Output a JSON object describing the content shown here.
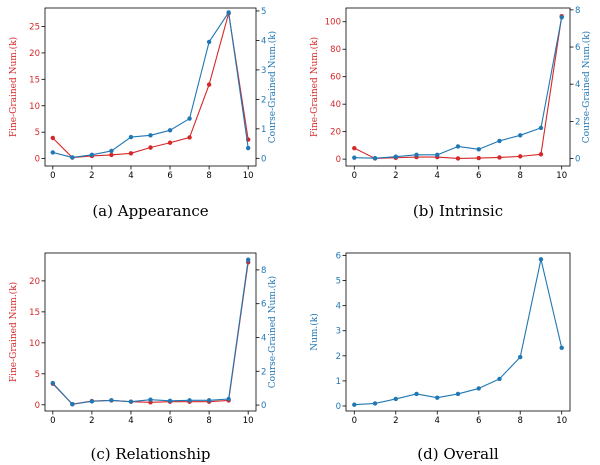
{
  "colors": {
    "fine": "#d62728",
    "coarse": "#1f77b4",
    "axis": "#000000"
  },
  "chart_data": [
    {
      "type": "line",
      "caption": "(a) Appearance",
      "x": [
        0,
        1,
        2,
        3,
        4,
        5,
        6,
        7,
        8,
        9,
        10
      ],
      "xlim": [
        -0.4,
        10.4
      ],
      "xticks": [
        0,
        2,
        4,
        6,
        8,
        10
      ],
      "ylabel": "Fine-Grained Num.(k)",
      "ylim": [
        -1.4,
        28.5
      ],
      "yticks": [
        0,
        5,
        10,
        15,
        20,
        25
      ],
      "y2label": "Course-Grained Num.(k)",
      "y2lim": [
        -0.26,
        5.1
      ],
      "y2ticks": [
        0,
        1,
        2,
        3,
        4,
        5
      ],
      "series": [
        {
          "axis": "left",
          "color": "#d62728",
          "values": [
            3.9,
            0.2,
            0.5,
            0.7,
            1.0,
            2.1,
            3.0,
            4.0,
            14.0,
            27.5,
            3.6
          ]
        },
        {
          "axis": "right",
          "color": "#1f77b4",
          "values": [
            0.2,
            0.03,
            0.12,
            0.25,
            0.72,
            0.78,
            0.95,
            1.35,
            3.95,
            4.95,
            0.35
          ]
        }
      ]
    },
    {
      "type": "line",
      "caption": "(b) Intrinsic",
      "x": [
        0,
        1,
        2,
        3,
        4,
        5,
        6,
        7,
        8,
        9,
        10
      ],
      "xlim": [
        -0.4,
        10.4
      ],
      "xticks": [
        0,
        2,
        4,
        6,
        8,
        10
      ],
      "ylabel": "Fine-Grained Num.(k)",
      "ylim": [
        -5,
        110
      ],
      "yticks": [
        0,
        20,
        40,
        60,
        80,
        100
      ],
      "y2label": "Course-Grained Num.(k)",
      "y2lim": [
        -0.4,
        8.1
      ],
      "y2ticks": [
        0,
        2,
        4,
        6,
        8
      ],
      "series": [
        {
          "axis": "left",
          "color": "#d62728",
          "values": [
            8.0,
            0.5,
            1.0,
            1.5,
            1.5,
            0.5,
            0.8,
            1.2,
            2.0,
            3.5,
            104.0
          ]
        },
        {
          "axis": "right",
          "color": "#1f77b4",
          "values": [
            0.05,
            0.02,
            0.1,
            0.2,
            0.2,
            0.65,
            0.5,
            0.95,
            1.25,
            1.65,
            7.6
          ]
        }
      ]
    },
    {
      "type": "line",
      "caption": "(c) Relationship",
      "x": [
        0,
        1,
        2,
        3,
        4,
        5,
        6,
        7,
        8,
        9,
        10
      ],
      "xlim": [
        -0.4,
        10.4
      ],
      "xticks": [
        0,
        2,
        4,
        6,
        8,
        10
      ],
      "ylabel": "Fine-Grained Num.(k)",
      "ylim": [
        -1.0,
        24.5
      ],
      "yticks": [
        0,
        5,
        10,
        15,
        20
      ],
      "y2label": "Course-Grained Num.(k)",
      "y2lim": [
        -0.35,
        9.0
      ],
      "y2ticks": [
        0,
        2,
        4,
        6,
        8
      ],
      "series": [
        {
          "axis": "left",
          "color": "#d62728",
          "values": [
            3.4,
            0.1,
            0.6,
            0.7,
            0.5,
            0.4,
            0.5,
            0.5,
            0.5,
            0.7,
            23.0
          ]
        },
        {
          "axis": "right",
          "color": "#1f77b4",
          "values": [
            1.3,
            0.05,
            0.22,
            0.28,
            0.2,
            0.32,
            0.25,
            0.28,
            0.28,
            0.36,
            8.6
          ]
        }
      ]
    },
    {
      "type": "line",
      "caption": "(d) Overall",
      "x": [
        0,
        1,
        2,
        3,
        4,
        5,
        6,
        7,
        8,
        9,
        10
      ],
      "xlim": [
        -0.4,
        10.4
      ],
      "xticks": [
        0,
        2,
        4,
        6,
        8,
        10
      ],
      "ylabel": "Num.(k)",
      "ylim": [
        -0.2,
        6.1
      ],
      "yticks": [
        0,
        1,
        2,
        3,
        4,
        5,
        6
      ],
      "series": [
        {
          "axis": "left",
          "color": "#1f77b4",
          "values": [
            0.05,
            0.1,
            0.28,
            0.48,
            0.33,
            0.48,
            0.7,
            1.08,
            1.95,
            5.85,
            2.32
          ]
        }
      ]
    }
  ]
}
